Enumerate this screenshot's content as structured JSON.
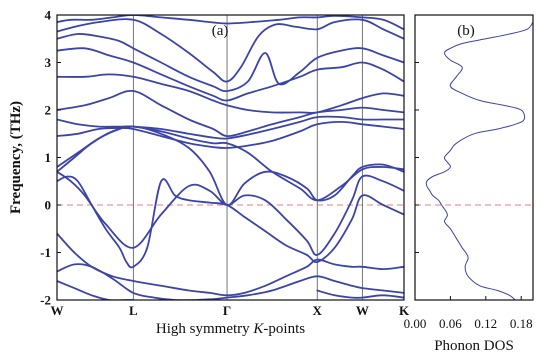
{
  "colors": {
    "band": "#3b44a8",
    "zero_line": "#e58080",
    "axis": "#111111"
  },
  "chart_data": [
    {
      "type": "line",
      "panel_label": "(a)",
      "xlabel_prefix": "High symmetry ",
      "xlabel_italic": "K",
      "xlabel_suffix": "-points",
      "ylabel": "Frequency, (THz)",
      "ylim": [
        -2,
        4
      ],
      "yticks": [
        -2,
        -1,
        0,
        1,
        2,
        3,
        4
      ],
      "ytick_labels": [
        "-2",
        "-1",
        "0",
        "1",
        "2",
        "3",
        "4"
      ],
      "kpoints": [
        {
          "label": "W",
          "pos": 0.0
        },
        {
          "label": "L",
          "pos": 0.22
        },
        {
          "label": "Γ",
          "pos": 0.49
        },
        {
          "label": "X",
          "pos": 0.75
        },
        {
          "label": "W",
          "pos": 0.88
        },
        {
          "label": "K",
          "pos": 1.0
        }
      ],
      "reference_line": {
        "y": 0,
        "style": "dashed"
      },
      "grid": false,
      "series": [
        {
          "x": [
            0,
            0.04,
            0.1,
            0.16,
            0.22,
            0.3,
            0.38,
            0.44,
            0.49,
            0.56,
            0.64,
            0.7,
            0.75,
            0.8,
            0.88,
            0.94,
            1.0
          ],
          "y": [
            3.85,
            3.9,
            3.9,
            3.95,
            4.0,
            3.95,
            3.9,
            3.85,
            3.82,
            3.85,
            3.9,
            3.95,
            3.95,
            3.98,
            3.95,
            3.9,
            3.7
          ]
        },
        {
          "x": [
            0,
            0.05,
            0.12,
            0.22,
            0.3,
            0.38,
            0.45,
            0.49,
            0.53,
            0.58,
            0.63,
            0.69,
            0.75,
            0.8,
            0.88,
            0.94,
            1.0
          ],
          "y": [
            3.65,
            3.75,
            3.85,
            3.9,
            3.6,
            3.2,
            2.8,
            2.6,
            2.9,
            3.55,
            3.8,
            3.75,
            3.7,
            3.85,
            3.9,
            3.7,
            3.5
          ]
        },
        {
          "x": [
            0,
            0.06,
            0.12,
            0.18,
            0.22,
            0.3,
            0.38,
            0.45,
            0.49,
            0.55,
            0.6,
            0.64,
            0.7,
            0.75,
            0.82,
            0.88,
            0.94,
            1.0
          ],
          "y": [
            3.5,
            3.6,
            3.55,
            3.45,
            3.3,
            3.0,
            2.7,
            2.5,
            2.4,
            2.6,
            3.2,
            2.55,
            2.8,
            3.1,
            3.25,
            3.3,
            3.15,
            3.0
          ]
        },
        {
          "x": [
            0,
            0.08,
            0.15,
            0.22,
            0.3,
            0.38,
            0.45,
            0.49,
            0.55,
            0.62,
            0.7,
            0.75,
            0.82,
            0.88,
            0.94,
            1.0
          ],
          "y": [
            3.25,
            3.3,
            3.15,
            3.0,
            2.75,
            2.5,
            2.3,
            2.2,
            2.35,
            2.5,
            2.7,
            2.85,
            2.9,
            3.0,
            2.85,
            2.6
          ]
        },
        {
          "x": [
            0,
            0.08,
            0.15,
            0.22,
            0.3,
            0.38,
            0.45,
            0.49,
            0.55,
            0.62,
            0.7,
            0.75,
            0.82,
            0.88,
            0.94,
            1.0
          ],
          "y": [
            2.7,
            2.7,
            2.75,
            2.7,
            2.55,
            2.4,
            2.2,
            2.1,
            2.0,
            1.95,
            1.95,
            1.95,
            2.1,
            2.25,
            2.35,
            2.3
          ]
        },
        {
          "x": [
            0,
            0.08,
            0.15,
            0.22,
            0.3,
            0.38,
            0.45,
            0.49,
            0.55,
            0.62,
            0.7,
            0.75,
            0.82,
            0.88,
            0.94,
            1.0
          ],
          "y": [
            2.0,
            2.1,
            2.25,
            2.4,
            2.1,
            1.8,
            1.6,
            1.45,
            1.55,
            1.7,
            1.85,
            1.95,
            2.0,
            2.05,
            2.0,
            1.95
          ]
        },
        {
          "x": [
            0,
            0.06,
            0.12,
            0.18,
            0.22,
            0.3,
            0.38,
            0.45,
            0.49,
            0.55,
            0.62,
            0.7,
            0.75,
            0.82,
            0.88,
            0.94,
            1.0
          ],
          "y": [
            1.8,
            1.7,
            1.65,
            1.65,
            1.65,
            1.6,
            1.5,
            1.42,
            1.4,
            1.48,
            1.6,
            1.75,
            1.85,
            1.85,
            1.8,
            1.8,
            1.8
          ]
        },
        {
          "x": [
            0,
            0.06,
            0.12,
            0.18,
            0.22,
            0.3,
            0.38,
            0.45,
            0.49,
            0.55,
            0.62,
            0.7,
            0.75,
            0.82,
            0.88,
            0.94,
            1.0
          ],
          "y": [
            1.45,
            1.5,
            1.6,
            1.62,
            1.6,
            1.45,
            1.3,
            1.22,
            1.2,
            1.25,
            1.35,
            1.55,
            1.7,
            1.75,
            1.7,
            1.65,
            1.6
          ]
        },
        {
          "x": [
            0,
            0.06,
            0.12,
            0.18,
            0.22,
            0.3,
            0.38,
            0.45,
            0.49,
            0.55,
            0.62,
            0.7,
            0.75,
            0.82,
            0.88,
            0.94,
            1.0
          ],
          "y": [
            0.8,
            1.1,
            1.4,
            1.6,
            1.65,
            1.55,
            1.4,
            1.3,
            1.3,
            1.1,
            0.7,
            0.35,
            0.1,
            0.4,
            0.75,
            0.8,
            0.75
          ]
        },
        {
          "x": [
            0,
            0.05,
            0.1,
            0.16,
            0.22,
            0.3,
            0.38,
            0.44,
            0.49,
            0.54,
            0.6,
            0.66,
            0.72,
            0.75,
            0.8,
            0.85,
            0.88,
            0.94,
            1.0
          ],
          "y": [
            0.7,
            1.0,
            1.3,
            1.55,
            1.65,
            1.5,
            1.2,
            0.7,
            0.0,
            0.45,
            0.7,
            0.6,
            0.35,
            0.1,
            0.2,
            0.6,
            0.8,
            0.85,
            0.7
          ]
        },
        {
          "x": [
            0,
            0.04,
            0.08,
            0.14,
            0.22,
            0.3,
            0.38,
            0.44,
            0.49,
            0.54,
            0.6,
            0.66,
            0.72,
            0.75,
            0.8,
            0.85,
            0.88,
            0.94,
            1.0
          ],
          "y": [
            0.7,
            0.5,
            0.2,
            -0.4,
            -0.9,
            -0.2,
            0.4,
            0.3,
            0.0,
            0.2,
            0.1,
            -0.3,
            -0.75,
            -1.05,
            -0.6,
            0.1,
            0.6,
            0.5,
            0.3
          ]
        },
        {
          "x": [
            0,
            0.03,
            0.06,
            0.1,
            0.14,
            0.18,
            0.2,
            0.22,
            0.26,
            0.3,
            0.34,
            0.38,
            0.44,
            0.49,
            0.54,
            0.6,
            0.66,
            0.72,
            0.75,
            0.8,
            0.85,
            0.88,
            0.94,
            1.0
          ],
          "y": [
            0.5,
            0.6,
            0.5,
            0.0,
            -0.5,
            -0.9,
            -1.2,
            -1.3,
            -0.9,
            0.5,
            0.2,
            0.1,
            0.05,
            0.0,
            -0.25,
            -0.55,
            -0.85,
            -1.05,
            -1.2,
            -0.9,
            -0.3,
            0.2,
            0.0,
            -0.2
          ]
        },
        {
          "x": [
            0,
            0.05,
            0.1,
            0.16,
            0.22,
            0.3,
            0.38,
            0.44,
            0.49,
            0.54,
            0.6,
            0.66,
            0.72,
            0.75,
            0.8,
            0.85,
            0.88,
            0.94,
            1.0
          ],
          "y": [
            -0.6,
            -1.0,
            -1.3,
            -1.5,
            -1.6,
            -1.7,
            -1.8,
            -1.85,
            -1.9,
            -1.85,
            -1.7,
            -1.5,
            -1.3,
            -1.15,
            -1.25,
            -1.3,
            -1.3,
            -1.35,
            -1.3
          ]
        },
        {
          "x": [
            0,
            0.05,
            0.1,
            0.16,
            0.22,
            0.28,
            0.34,
            0.4,
            0.45,
            0.49,
            0.55,
            0.62,
            0.7,
            0.75,
            0.8,
            0.85,
            0.88,
            0.94,
            1.0
          ],
          "y": [
            -1.4,
            -1.25,
            -1.3,
            -1.55,
            -1.85,
            -1.95,
            -2.0,
            -2.0,
            -1.98,
            -1.95,
            -1.9,
            -1.8,
            -1.6,
            -1.5,
            -1.6,
            -1.7,
            -1.75,
            -1.8,
            -1.85
          ]
        },
        {
          "x": [
            0,
            0.05,
            0.1,
            0.15,
            0.2,
            0.22
          ],
          "y": [
            -1.6,
            -1.75,
            -1.9,
            -2.0,
            -2.0,
            -2.0
          ]
        },
        {
          "x": [
            0.75,
            0.8,
            0.85,
            0.88,
            0.94,
            1.0
          ],
          "y": [
            -1.8,
            -1.9,
            -1.95,
            -1.95,
            -1.9,
            -1.95
          ]
        }
      ]
    },
    {
      "type": "line",
      "panel_label": "(b)",
      "xlabel": "Phonon DOS",
      "xlim": [
        0.0,
        0.2
      ],
      "xticks": [
        0.0,
        0.06,
        0.12,
        0.18
      ],
      "xtick_labels": [
        "0.00",
        "0.06",
        "0.12",
        "0.18"
      ],
      "ylim": [
        -2,
        4
      ],
      "reference_line": {
        "y": 0,
        "style": "dashed"
      },
      "grid": false,
      "series": [
        {
          "x": [
            0.17,
            0.16,
            0.14,
            0.11,
            0.09,
            0.085,
            0.09,
            0.08,
            0.07,
            0.06,
            0.05,
            0.055,
            0.045,
            0.04,
            0.03,
            0.025,
            0.02,
            0.02,
            0.03,
            0.05,
            0.06,
            0.055,
            0.05,
            0.06,
            0.07,
            0.1,
            0.14,
            0.17,
            0.185,
            0.18,
            0.15,
            0.11,
            0.08,
            0.06,
            0.07,
            0.08,
            0.06,
            0.05,
            0.06,
            0.08,
            0.12,
            0.16,
            0.19,
            0.2
          ],
          "y": [
            -2.0,
            -1.9,
            -1.8,
            -1.7,
            -1.5,
            -1.3,
            -1.1,
            -0.9,
            -0.7,
            -0.5,
            -0.35,
            -0.2,
            0.0,
            0.1,
            0.2,
            0.3,
            0.4,
            0.5,
            0.6,
            0.7,
            0.8,
            0.9,
            1.0,
            1.15,
            1.3,
            1.5,
            1.6,
            1.7,
            1.8,
            2.0,
            2.1,
            2.2,
            2.35,
            2.5,
            2.7,
            2.9,
            3.05,
            3.2,
            3.3,
            3.4,
            3.5,
            3.6,
            3.7,
            3.85
          ]
        }
      ]
    }
  ]
}
